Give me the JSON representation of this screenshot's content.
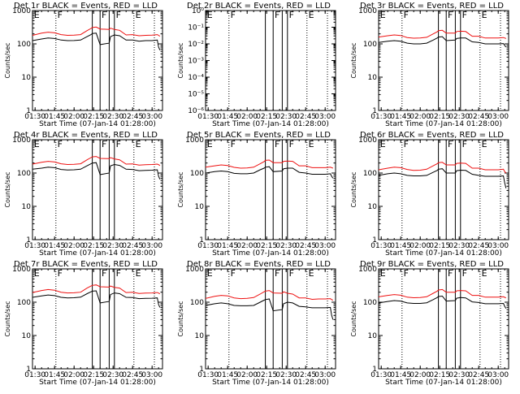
{
  "colors": {
    "events": "#000000",
    "lld": "#ee1111",
    "axes": "#000000"
  },
  "common": {
    "title_suffix": " BLACK = Events, RED = LLD",
    "ylabel": "Counts/sec",
    "xlabel": "Start Time (07-Jan-14 01:28:00)",
    "x_ticks": [
      "01:30",
      "01:45",
      "02:00",
      "02:15",
      "02:30",
      "02:45",
      "03:00"
    ],
    "x_tick_minutes": [
      90,
      105,
      120,
      135,
      150,
      165,
      180
    ],
    "xlim_minutes": [
      88,
      188
    ],
    "vlines_minutes": [
      106,
      134,
      140,
      147,
      151,
      166
    ],
    "flag_labels": [
      {
        "label": "E",
        "minute": 88.5
      },
      {
        "label": "F",
        "minute": 106.5
      },
      {
        "label": "F",
        "minute": 140.5
      },
      {
        "label": "F",
        "minute": 151.5
      },
      {
        "label": "E",
        "minute": 166.5
      }
    ]
  },
  "chart_data": [
    {
      "title": "Det 1r",
      "type": "line",
      "yscale": "log",
      "ylim": [
        1,
        1000
      ],
      "y_ticks": [
        "1",
        "10",
        "100",
        "1000"
      ],
      "series": [
        {
          "name": "Events",
          "x": [
            88,
            95,
            100,
            105,
            110,
            115,
            120,
            125,
            130,
            133,
            134,
            137,
            140,
            147,
            148,
            151,
            155,
            160,
            165,
            170,
            175,
            180,
            184,
            185,
            186
          ],
          "y": [
            125,
            140,
            150,
            145,
            130,
            125,
            126,
            130,
            165,
            190,
            205,
            210,
            95,
            105,
            165,
            185,
            175,
            130,
            130,
            120,
            125,
            125,
            130,
            80,
            65
          ]
        },
        {
          "name": "LLD",
          "x": [
            88,
            95,
            100,
            105,
            110,
            115,
            120,
            125,
            130,
            133,
            134,
            137,
            140,
            147,
            148,
            151,
            155,
            160,
            165,
            170,
            175,
            180,
            184,
            185,
            186
          ],
          "y": [
            180,
            210,
            225,
            215,
            190,
            180,
            182,
            190,
            250,
            290,
            310,
            320,
            280,
            270,
            295,
            270,
            255,
            185,
            190,
            175,
            180,
            182,
            190,
            180,
            170
          ]
        }
      ]
    },
    {
      "title": "Det 2r",
      "type": "line",
      "yscale": "log",
      "ylim": [
        1e-06,
        1
      ],
      "y_ticks": [
        "10⁻⁶",
        "10⁻⁵",
        "10⁻⁴",
        "10⁻³",
        "10⁻²",
        "10⁻¹",
        "10⁰"
      ],
      "series": []
    },
    {
      "title": "Det 3r",
      "type": "line",
      "yscale": "log",
      "ylim": [
        1,
        1000
      ],
      "y_ticks": [
        "1",
        "10",
        "100",
        "1000"
      ],
      "series": [
        {
          "name": "Events",
          "x": [
            88,
            95,
            100,
            105,
            110,
            115,
            120,
            125,
            130,
            133,
            134,
            137,
            140,
            147,
            148,
            151,
            155,
            160,
            165,
            170,
            175,
            180,
            184,
            185,
            186
          ],
          "y": [
            110,
            120,
            125,
            120,
            105,
            100,
            100,
            105,
            130,
            150,
            160,
            165,
            125,
            130,
            145,
            150,
            150,
            115,
            110,
            100,
            100,
            100,
            102,
            90,
            80
          ]
        },
        {
          "name": "LLD",
          "x": [
            88,
            95,
            100,
            105,
            110,
            115,
            120,
            125,
            130,
            133,
            134,
            137,
            140,
            147,
            148,
            151,
            155,
            160,
            165,
            170,
            175,
            180,
            184,
            185,
            186
          ],
          "y": [
            160,
            175,
            185,
            178,
            155,
            148,
            150,
            158,
            200,
            230,
            250,
            255,
            210,
            210,
            235,
            240,
            235,
            170,
            170,
            150,
            150,
            150,
            155,
            150,
            145
          ]
        }
      ]
    },
    {
      "title": "Det 4r",
      "type": "line",
      "yscale": "log",
      "ylim": [
        1,
        1000
      ],
      "y_ticks": [
        "1",
        "10",
        "100",
        "1000"
      ],
      "series": [
        {
          "name": "Events",
          "x": [
            88,
            95,
            100,
            105,
            110,
            115,
            120,
            125,
            130,
            133,
            134,
            137,
            140,
            147,
            148,
            151,
            155,
            160,
            165,
            170,
            175,
            180,
            184,
            185,
            186
          ],
          "y": [
            130,
            140,
            150,
            145,
            128,
            124,
            125,
            130,
            165,
            190,
            200,
            205,
            90,
            100,
            165,
            180,
            170,
            130,
            128,
            118,
            120,
            122,
            125,
            80,
            65
          ]
        },
        {
          "name": "LLD",
          "x": [
            88,
            95,
            100,
            105,
            110,
            115,
            120,
            125,
            130,
            133,
            134,
            137,
            140,
            147,
            148,
            151,
            155,
            160,
            165,
            170,
            175,
            180,
            184,
            185,
            186
          ],
          "y": [
            185,
            210,
            225,
            215,
            190,
            180,
            182,
            190,
            250,
            290,
            305,
            315,
            275,
            270,
            290,
            265,
            250,
            185,
            188,
            172,
            178,
            180,
            185,
            178,
            168
          ]
        }
      ]
    },
    {
      "title": "Det 5r",
      "type": "line",
      "yscale": "log",
      "ylim": [
        1,
        1000
      ],
      "y_ticks": [
        "1",
        "10",
        "100",
        "1000"
      ],
      "series": [
        {
          "name": "Events",
          "x": [
            88,
            95,
            100,
            105,
            110,
            115,
            120,
            125,
            130,
            133,
            134,
            137,
            140,
            147,
            148,
            151,
            155,
            160,
            165,
            170,
            175,
            180,
            184,
            185,
            186
          ],
          "y": [
            100,
            110,
            115,
            110,
            98,
            95,
            95,
            100,
            125,
            140,
            150,
            155,
            110,
            115,
            135,
            140,
            140,
            105,
            100,
            92,
            92,
            92,
            95,
            80,
            70
          ]
        },
        {
          "name": "LLD",
          "x": [
            88,
            95,
            100,
            105,
            110,
            115,
            120,
            125,
            130,
            133,
            134,
            137,
            140,
            147,
            148,
            151,
            155,
            160,
            165,
            170,
            175,
            180,
            184,
            185,
            186
          ],
          "y": [
            150,
            165,
            175,
            168,
            148,
            140,
            142,
            150,
            190,
            220,
            240,
            245,
            205,
            205,
            225,
            230,
            225,
            165,
            165,
            145,
            145,
            145,
            150,
            145,
            140
          ]
        }
      ]
    },
    {
      "title": "Det 6r",
      "type": "line",
      "yscale": "log",
      "ylim": [
        1,
        1000
      ],
      "y_ticks": [
        "1",
        "10",
        "100",
        "1000"
      ],
      "series": [
        {
          "name": "Events",
          "x": [
            88,
            95,
            100,
            105,
            110,
            115,
            120,
            125,
            130,
            133,
            134,
            137,
            140,
            147,
            148,
            151,
            155,
            160,
            165,
            170,
            175,
            180,
            184,
            185,
            186
          ],
          "y": [
            85,
            95,
            100,
            95,
            85,
            82,
            82,
            85,
            105,
            120,
            130,
            135,
            100,
            100,
            118,
            122,
            120,
            92,
            85,
            80,
            80,
            80,
            82,
            50,
            35
          ]
        },
        {
          "name": "LLD",
          "x": [
            88,
            95,
            100,
            105,
            110,
            115,
            120,
            125,
            130,
            133,
            134,
            137,
            140,
            147,
            148,
            151,
            155,
            160,
            165,
            170,
            175,
            180,
            184,
            185,
            186
          ],
          "y": [
            125,
            140,
            150,
            145,
            128,
            120,
            122,
            130,
            165,
            190,
            205,
            210,
            175,
            175,
            195,
            200,
            195,
            140,
            140,
            125,
            125,
            125,
            130,
            110,
            100
          ]
        }
      ]
    },
    {
      "title": "Det 7r",
      "type": "line",
      "yscale": "log",
      "ylim": [
        1,
        1000
      ],
      "y_ticks": [
        "1",
        "10",
        "100",
        "1000"
      ],
      "series": [
        {
          "name": "Events",
          "x": [
            88,
            95,
            100,
            105,
            110,
            115,
            120,
            125,
            130,
            133,
            134,
            137,
            140,
            147,
            148,
            151,
            155,
            160,
            165,
            170,
            175,
            180,
            184,
            185,
            186
          ],
          "y": [
            140,
            155,
            165,
            158,
            140,
            135,
            136,
            142,
            180,
            205,
            215,
            220,
            95,
            105,
            170,
            190,
            180,
            140,
            138,
            128,
            130,
            132,
            135,
            85,
            70
          ]
        },
        {
          "name": "LLD",
          "x": [
            88,
            95,
            100,
            105,
            110,
            115,
            120,
            125,
            130,
            133,
            134,
            137,
            140,
            147,
            148,
            151,
            155,
            160,
            165,
            170,
            175,
            180,
            184,
            185,
            186
          ],
          "y": [
            195,
            225,
            240,
            230,
            200,
            190,
            192,
            200,
            265,
            305,
            320,
            330,
            290,
            285,
            305,
            280,
            265,
            195,
            198,
            182,
            188,
            190,
            195,
            188,
            178
          ]
        }
      ]
    },
    {
      "title": "Det 8r",
      "type": "line",
      "yscale": "log",
      "ylim": [
        1,
        1000
      ],
      "y_ticks": [
        "1",
        "10",
        "100",
        "1000"
      ],
      "series": [
        {
          "name": "Events",
          "x": [
            88,
            95,
            100,
            105,
            110,
            115,
            120,
            125,
            130,
            133,
            134,
            137,
            140,
            147,
            148,
            151,
            155,
            160,
            165,
            170,
            175,
            180,
            184,
            185,
            186
          ],
          "y": [
            80,
            90,
            95,
            90,
            80,
            78,
            78,
            80,
            100,
            115,
            120,
            125,
            55,
            60,
            90,
            100,
            95,
            75,
            72,
            68,
            68,
            68,
            70,
            40,
            30
          ]
        },
        {
          "name": "LLD",
          "x": [
            88,
            95,
            100,
            105,
            110,
            115,
            120,
            125,
            130,
            133,
            134,
            137,
            140,
            147,
            148,
            151,
            155,
            160,
            165,
            170,
            175,
            180,
            184,
            185,
            186
          ],
          "y": [
            130,
            150,
            160,
            155,
            135,
            128,
            130,
            138,
            175,
            205,
            215,
            225,
            190,
            185,
            205,
            185,
            175,
            135,
            135,
            122,
            125,
            125,
            128,
            120,
            115
          ]
        }
      ]
    },
    {
      "title": "Det 9r",
      "type": "line",
      "yscale": "log",
      "ylim": [
        1,
        1000
      ],
      "y_ticks": [
        "1",
        "10",
        "100",
        "1000"
      ],
      "series": [
        {
          "name": "Events",
          "x": [
            88,
            95,
            100,
            105,
            110,
            115,
            120,
            125,
            130,
            133,
            134,
            137,
            140,
            147,
            148,
            151,
            155,
            160,
            165,
            170,
            175,
            180,
            184,
            185,
            186
          ],
          "y": [
            95,
            105,
            112,
            108,
            95,
            92,
            92,
            96,
            120,
            138,
            148,
            152,
            108,
            112,
            132,
            138,
            135,
            102,
            98,
            90,
            90,
            90,
            92,
            75,
            65
          ]
        },
        {
          "name": "LLD",
          "x": [
            88,
            95,
            100,
            105,
            110,
            115,
            120,
            125,
            130,
            133,
            134,
            137,
            140,
            147,
            148,
            151,
            155,
            160,
            165,
            170,
            175,
            180,
            184,
            185,
            186
          ],
          "y": [
            145,
            160,
            170,
            162,
            142,
            136,
            138,
            146,
            185,
            215,
            232,
            240,
            200,
            200,
            220,
            225,
            220,
            160,
            160,
            142,
            142,
            142,
            146,
            140,
            135
          ]
        }
      ]
    }
  ]
}
